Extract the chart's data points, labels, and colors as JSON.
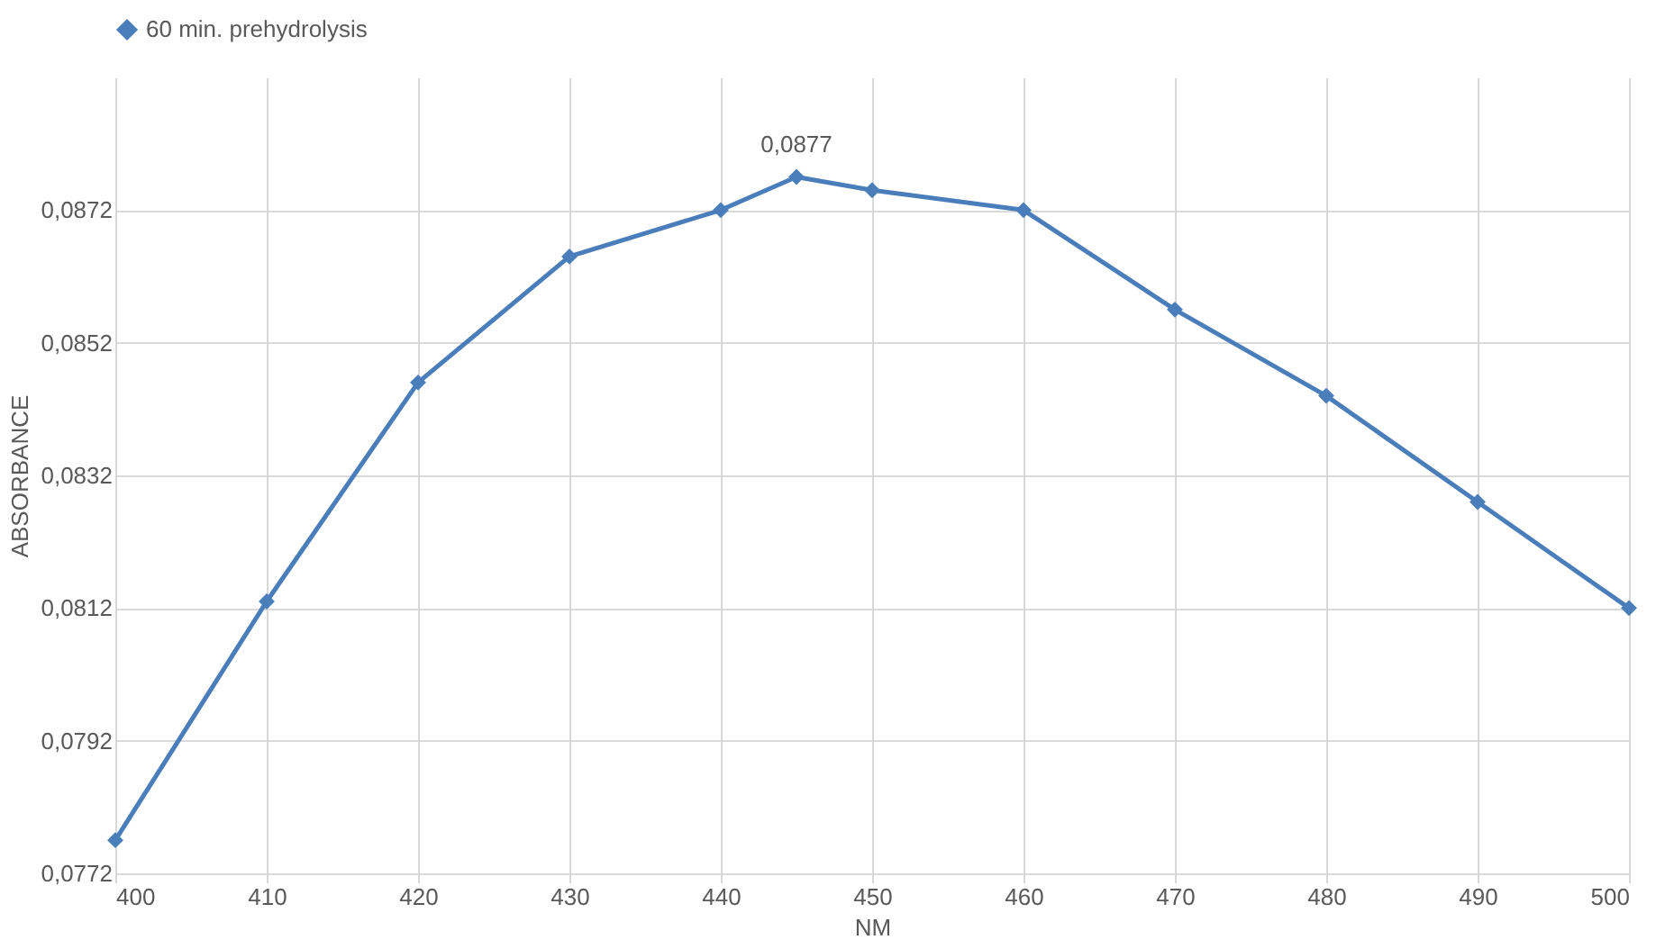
{
  "chart_data": {
    "type": "line",
    "xlabel": "NM",
    "ylabel": "ABSORBANCE",
    "x": [
      400,
      410,
      420,
      430,
      440,
      445,
      450,
      460,
      470,
      480,
      490,
      500
    ],
    "series": [
      {
        "name": "60 min. prehydrolysis",
        "color": "#4a7ebb",
        "values": [
          0.0777,
          0.0813,
          0.0846,
          0.0865,
          0.0872,
          0.0877,
          0.0875,
          0.0872,
          0.0857,
          0.0844,
          0.0828,
          0.0812
        ],
        "value_labels": [
          null,
          null,
          null,
          null,
          null,
          "0,0877",
          null,
          null,
          null,
          null,
          null,
          null
        ]
      }
    ],
    "xlim": [
      400,
      500
    ],
    "xticks": [
      400,
      410,
      420,
      430,
      440,
      450,
      460,
      470,
      480,
      490,
      500
    ],
    "ylim": [
      0.0772,
      0.0892
    ],
    "yticks": [
      {
        "value": 0.0772,
        "label": "0,0772"
      },
      {
        "value": 0.0792,
        "label": "0,0792"
      },
      {
        "value": 0.0812,
        "label": "0,0812"
      },
      {
        "value": 0.0832,
        "label": "0,0832"
      },
      {
        "value": 0.0852,
        "label": "0,0852"
      },
      {
        "value": 0.0872,
        "label": "0,0872"
      }
    ],
    "grid": true,
    "legend": "top",
    "marker": "diamond",
    "line_style": "solid"
  }
}
